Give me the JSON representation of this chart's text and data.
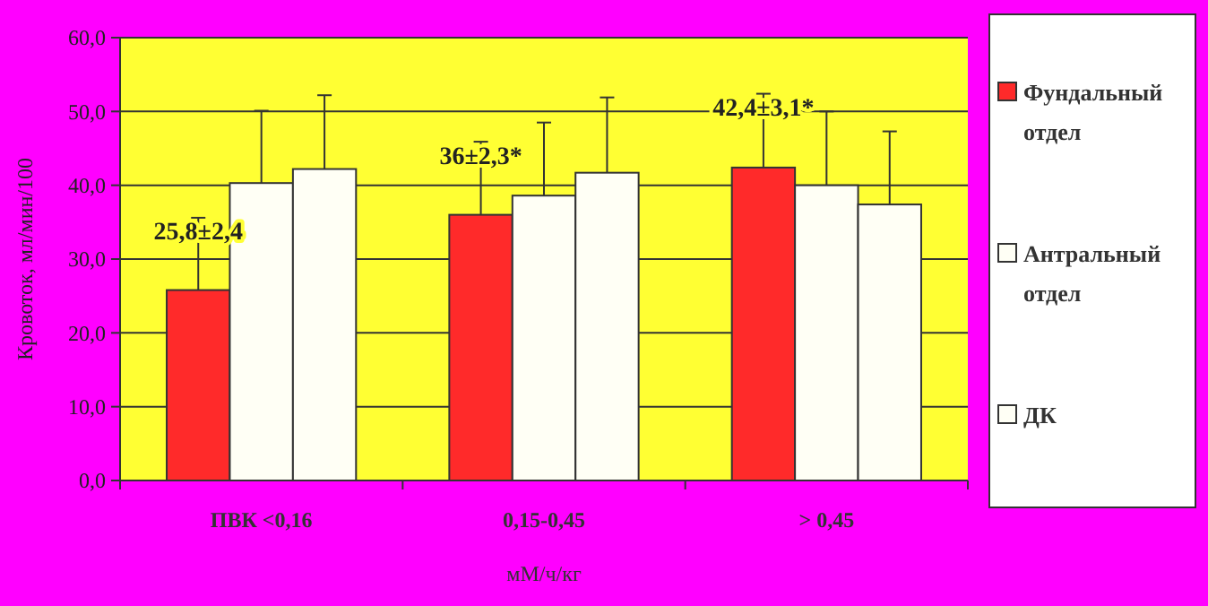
{
  "chart_data": {
    "type": "bar",
    "ylabel": "Кровоток, мл/мин/100",
    "xlabel": "мМ/ч/кг",
    "categories": [
      "ПВК <0,16",
      "0,15-0,45",
      "> 0,45"
    ],
    "series": [
      {
        "name": "Фундальный отдел",
        "color": "#ff2a2a",
        "values": [
          25.8,
          36,
          42.4
        ],
        "errors": [
          9.8,
          9.9,
          10
        ],
        "value_labels": [
          "25,8±2,4",
          "36±2,3*",
          "42,4±3,1*"
        ]
      },
      {
        "name": "Антральный отдел",
        "color": "#fffff5",
        "values": [
          40.3,
          38.6,
          40
        ],
        "errors": [
          9.8,
          9.9,
          10
        ]
      },
      {
        "name": "ДК",
        "color": "#fffff5",
        "values": [
          42.2,
          41.7,
          37.4
        ],
        "errors": [
          10,
          10.2,
          9.9
        ]
      }
    ],
    "ylim": [
      0,
      60
    ],
    "yticks": [
      {
        "value": 0,
        "label": "0,0"
      },
      {
        "value": 10,
        "label": "10,0"
      },
      {
        "value": 20,
        "label": "20,0"
      },
      {
        "value": 30,
        "label": "30,0"
      },
      {
        "value": 40,
        "label": "40,0"
      },
      {
        "value": 50,
        "label": "50,0"
      },
      {
        "value": 60,
        "label": "60,0"
      }
    ],
    "grid": "y",
    "legend": "right"
  }
}
